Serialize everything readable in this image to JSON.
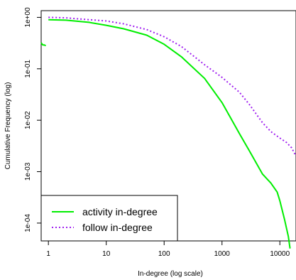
{
  "chart_data": {
    "type": "line",
    "xlabel": "In-degree (log scale)",
    "ylabel": "Cumulative Frequency (log)",
    "x_scale": "log",
    "y_scale": "log",
    "xlim": [
      0.75,
      19000
    ],
    "ylim": [
      4.5e-05,
      1.35
    ],
    "x_ticks": [
      1,
      10,
      100,
      1000,
      10000
    ],
    "x_tick_labels": [
      "1",
      "10",
      "100",
      "1000",
      "10000"
    ],
    "y_ticks": [
      1,
      0.1,
      0.01,
      0.001,
      0.0001
    ],
    "y_tick_labels": [
      "1e+00",
      "1e-01",
      "1e-02",
      "1e-03",
      "1e-04"
    ],
    "grid": false,
    "legend": {
      "placement": "bottom-left",
      "entries": [
        {
          "label": "activity in-degree",
          "style": "solid",
          "color": "#00ee00"
        },
        {
          "label": "follow in-degree",
          "style": "dotted",
          "color": "#a020f0"
        }
      ]
    },
    "series": [
      {
        "name": "activity in-degree",
        "color": "#00ee00",
        "style": "solid",
        "segments": [
          {
            "x": [
              0.75,
              0.8,
              0.85,
              0.9
            ],
            "y": [
              0.32,
              0.29,
              0.29,
              0.28
            ]
          },
          {
            "x": [
              1,
              2,
              5,
              10,
              20,
              50,
              100,
              200,
              500,
              1000,
              2000,
              3000,
              5000,
              7000,
              9000,
              10000,
              12000,
              14000,
              15000
            ],
            "y": [
              0.9,
              0.88,
              0.8,
              0.7,
              0.6,
              0.45,
              0.3,
              0.17,
              0.065,
              0.022,
              0.0055,
              0.0025,
              0.0009,
              0.0006,
              0.0004,
              0.00027,
              0.00012,
              5.5e-05,
              3.2e-05
            ]
          }
        ]
      },
      {
        "name": "follow in-degree",
        "color": "#a020f0",
        "style": "dotted",
        "segments": [
          {
            "x": [
              1,
              2,
              5,
              10,
              20,
              50,
              100,
              200,
              500,
              1000,
              2000,
              3000,
              5000,
              7000,
              10000,
              13000,
              16000,
              19000
            ],
            "y": [
              1.0,
              0.98,
              0.9,
              0.85,
              0.75,
              0.58,
              0.42,
              0.27,
              0.12,
              0.068,
              0.035,
              0.02,
              0.009,
              0.006,
              0.0045,
              0.0037,
              0.0029,
              0.002
            ]
          }
        ]
      }
    ]
  }
}
